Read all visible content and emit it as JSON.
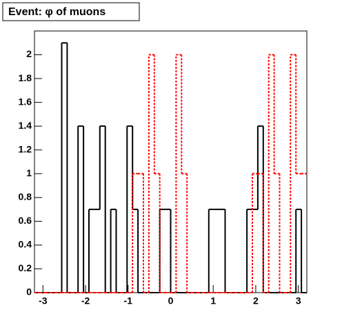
{
  "chart_data": {
    "type": "histogram",
    "title": "Event: φ of muons",
    "bins": [
      -3.2,
      -3.072,
      -2.944,
      -2.816,
      -2.688,
      -2.56,
      -2.432,
      -2.304,
      -2.176,
      -2.048,
      -1.92,
      -1.792,
      -1.664,
      -1.536,
      -1.408,
      -1.28,
      -1.152,
      -1.024,
      -0.896,
      -0.768,
      -0.64,
      -0.512,
      -0.384,
      -0.256,
      -0.128,
      0,
      0.128,
      0.256,
      0.384,
      0.512,
      0.64,
      0.768,
      0.896,
      1.024,
      1.152,
      1.28,
      1.408,
      1.536,
      1.664,
      1.792,
      1.92,
      2.048,
      2.176,
      2.304,
      2.432,
      2.56,
      2.688,
      2.816,
      2.944,
      3.072,
      3.2
    ],
    "series": [
      {
        "color": "#000000",
        "style": "solid",
        "values": [
          0,
          0,
          0,
          0,
          0,
          2.1,
          0,
          0,
          1.4,
          0,
          0.7,
          0.7,
          1.4,
          0,
          0.7,
          0,
          0,
          1.4,
          0.7,
          0,
          0,
          0,
          0,
          0.7,
          0.7,
          0,
          0,
          0,
          0,
          0,
          0,
          0,
          0.7,
          0.7,
          0.7,
          0,
          0,
          0,
          0,
          0.7,
          0.7,
          1.4,
          0,
          0,
          0,
          0,
          0,
          0,
          0.7,
          0
        ]
      },
      {
        "color": "#ff0000",
        "style": "dotted",
        "values": [
          0,
          0,
          0,
          0,
          0,
          0,
          0,
          0,
          0,
          0,
          0,
          0,
          0,
          0,
          0,
          0,
          0,
          0,
          1,
          1,
          0,
          2,
          1,
          0,
          0,
          0,
          2,
          1,
          0,
          0,
          0,
          0,
          0,
          0,
          0,
          0,
          0,
          0,
          0,
          0,
          1,
          1,
          0,
          2,
          1,
          0,
          0,
          2,
          1,
          1
        ]
      }
    ],
    "xlim": [
      -3.2,
      3.2
    ],
    "xticks": [
      -3,
      -2,
      -1,
      0,
      1,
      2,
      3
    ],
    "ylim": [
      0,
      2.2
    ],
    "yticks": [
      0,
      0.2,
      0.4,
      0.6,
      0.8,
      1,
      1.2,
      1.4,
      1.6,
      1.8,
      2
    ]
  }
}
